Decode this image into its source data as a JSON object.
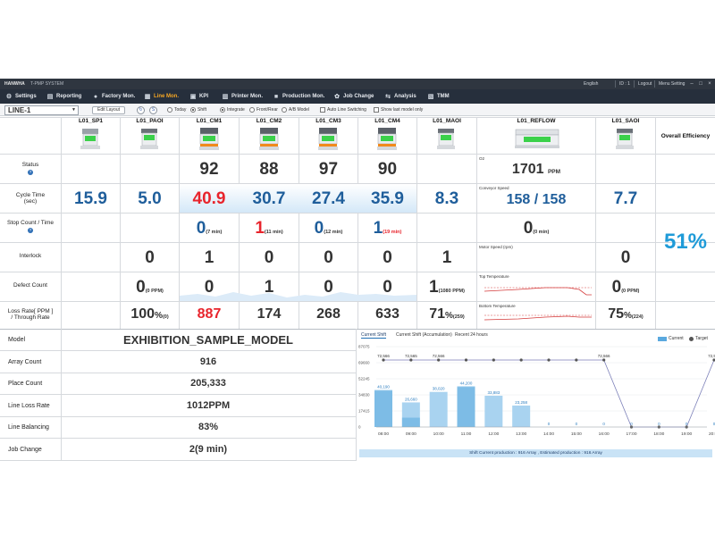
{
  "titlebar": {
    "brand": "HANWHA",
    "system": "T-PMP SYSTEM",
    "language": "English",
    "user_id": "ID : 1",
    "logout": "Logout",
    "menu_setting": "Menu Setting"
  },
  "nav": [
    {
      "label": "Settings",
      "icon": "gear-icon"
    },
    {
      "label": "Reporting",
      "icon": "report-icon"
    },
    {
      "label": "Factory Mon.",
      "icon": "factory-icon"
    },
    {
      "label": "Line Mon.",
      "icon": "line-icon"
    },
    {
      "label": "KPI",
      "icon": "kpi-icon"
    },
    {
      "label": "Printer Mon.",
      "icon": "printer-icon"
    },
    {
      "label": "Production Mon.",
      "icon": "production-icon"
    },
    {
      "label": "Job Change",
      "icon": "job-change-icon"
    },
    {
      "label": "Analysis",
      "icon": "analysis-icon"
    },
    {
      "label": "TMM",
      "icon": "tmm-icon"
    }
  ],
  "toolbar": {
    "line": "LINE-1",
    "edit_layout": "Edit Layout",
    "today": "Today",
    "shift": "Shift",
    "integrate": "Integrate",
    "front_rear": "Front/Rear",
    "ab_model": "A/B Model",
    "auto_line_switching": "Auto Line Switching",
    "show_last_model_only": "Show last model only"
  },
  "columns": [
    "L01_SP1",
    "L01_PAOI",
    "L01_CM1",
    "L01_CM2",
    "L01_CM3",
    "L01_CM4",
    "L01_MAOI",
    "L01_REFLOW",
    "L01_SAOI"
  ],
  "overall_efficiency_label": "Overall Efficiency",
  "overall_efficiency": "51%",
  "rows": {
    "status": "Status",
    "cycle_time_line1": "Cycle Time",
    "cycle_time_line2": "(sec)",
    "stop_count": "Stop Count / Time",
    "interlock": "Interlock",
    "defect_count": "Defect Count",
    "loss_rate_line1": "Loss Rate[ PPM ]",
    "loss_rate_line2": "/ Through Rate"
  },
  "status": {
    "cm1": "92",
    "cm2": "88",
    "cm3": "97",
    "cm4": "90"
  },
  "cycle": {
    "sp1": "15.9",
    "paoi": "5.0",
    "cm1": "40.9",
    "cm2": "30.7",
    "cm3": "27.4",
    "cm4": "35.9",
    "maoi": "8.3",
    "saoi": "7.7"
  },
  "stop": {
    "cm1": "0",
    "cm1_t": "(7 min)",
    "cm2": "1",
    "cm2_t": "(11 min)",
    "cm3": "0",
    "cm3_t": "(12 min)",
    "cm4": "1",
    "cm4_t": "(19 min)",
    "reflow": "0",
    "reflow_t": "(0 min)"
  },
  "interlock": {
    "paoi": "0",
    "cm1": "1",
    "cm2": "0",
    "cm3": "0",
    "cm4": "0",
    "maoi": "1",
    "saoi": "0"
  },
  "defect": {
    "paoi": "0",
    "paoi_u": "(0 PPM)",
    "cm1": "0",
    "cm2": "1",
    "cm3": "0",
    "cm4": "0",
    "maoi": "1",
    "maoi_u": "(1080 PPM)",
    "saoi": "0",
    "saoi_u": "(0 PPM)"
  },
  "loss": {
    "paoi": "100",
    "paoi_pct": "%",
    "paoi_u": "(0)",
    "cm1": "887",
    "cm2": "174",
    "cm3": "268",
    "cm4": "633",
    "maoi": "71",
    "maoi_pct": "%",
    "maoi_u": "(259)",
    "saoi": "75",
    "saoi_pct": "%",
    "saoi_u": "(224)"
  },
  "reflow": {
    "o2_label": "O2",
    "o2_value": "1701",
    "o2_unit": "PPM",
    "conveyor_label": "Conveyor Speed",
    "conveyor_value": "158 / 158",
    "motor_label": "Motor Speed (rpm)",
    "top_temp_label": "Top Temperature",
    "bottom_temp_label": "Bottom Temperature"
  },
  "summary": [
    {
      "label": "Model",
      "value": "EXHIBITION_SAMPLE_MODEL"
    },
    {
      "label": "Array Count",
      "value": "916"
    },
    {
      "label": "Place Count",
      "value": "205,333"
    },
    {
      "label": "Line Loss Rate",
      "value": "1012PPM"
    },
    {
      "label": "Line Balancing",
      "value": "83%"
    },
    {
      "label": "Job Change",
      "value": "2(9 min)"
    }
  ],
  "chart_tabs": [
    "Current Shift",
    "Current Shift (Accumulation)",
    "Recent 24 hours"
  ],
  "legend": {
    "current": "Current",
    "target": "Target"
  },
  "colors": {
    "current_bar": "#a9d3f0",
    "current_bar_dark": "#5aa9df",
    "target_line": "#7b7fb8",
    "accent_blue": "#1f5e9b",
    "alert_red": "#e8242c"
  },
  "chart_data": {
    "type": "bar",
    "categories": [
      "08:00",
      "09:00",
      "10:00",
      "11:00",
      "12:00",
      "13:00",
      "14:00",
      "15:00",
      "16:00",
      "17:00",
      "18:00",
      "19:00",
      "20:00"
    ],
    "y_ticks": [
      "87075",
      "69660",
      "52245",
      "34830",
      "17415",
      "0"
    ],
    "ylim": [
      0,
      87075
    ],
    "series": [
      {
        "name": "Current",
        "values": [
          40190,
          26660,
          38020,
          44200,
          33883,
          23258,
          0,
          0,
          0,
          0,
          0,
          0,
          0
        ],
        "labels": [
          "40,190",
          "26,660",
          "38,020",
          "44,200",
          "33,883",
          "23,258",
          "0",
          "0",
          "0",
          "0",
          "0",
          "0",
          "0"
        ]
      },
      {
        "name": "Target",
        "values": [
          72566,
          72565,
          72566,
          72566,
          72566,
          72566,
          72566,
          72566,
          72566,
          0,
          0,
          0,
          72566
        ],
        "labels": [
          "72,566",
          "72,565",
          "72,566",
          "",
          "",
          "",
          "",
          "",
          "72,566",
          "",
          "",
          "",
          "72,566"
        ]
      }
    ],
    "footer": "Shift Current production : 916 Array ,   Estimated production : 916 Array"
  }
}
